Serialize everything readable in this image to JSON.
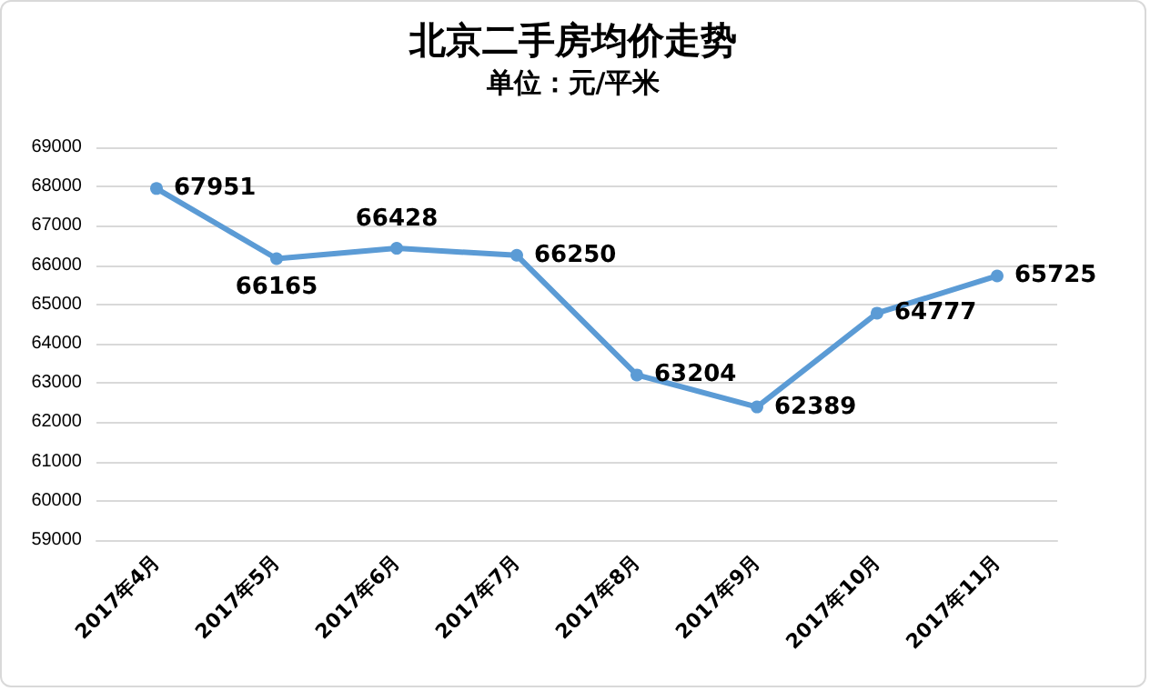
{
  "chart_data": {
    "type": "line",
    "title": "北京二手房均价走势",
    "subtitle": "单位：元/平米",
    "categories": [
      "2017年4月",
      "2017年5月",
      "2017年6月",
      "2017年7月",
      "2017年8月",
      "2017年9月",
      "2017年10月",
      "2017年11月"
    ],
    "series": [
      {
        "color": "#5b9bd5",
        "values": [
          67951,
          66165,
          66428,
          66250,
          63204,
          62389,
          64777,
          65725
        ]
      }
    ],
    "ylim": [
      59000,
      69000
    ],
    "yticks": [
      59000,
      60000,
      61000,
      62000,
      63000,
      64000,
      65000,
      66000,
      67000,
      68000,
      69000
    ],
    "grid": "y",
    "marker": "circle",
    "line_style": "solid",
    "data_labels": true
  }
}
